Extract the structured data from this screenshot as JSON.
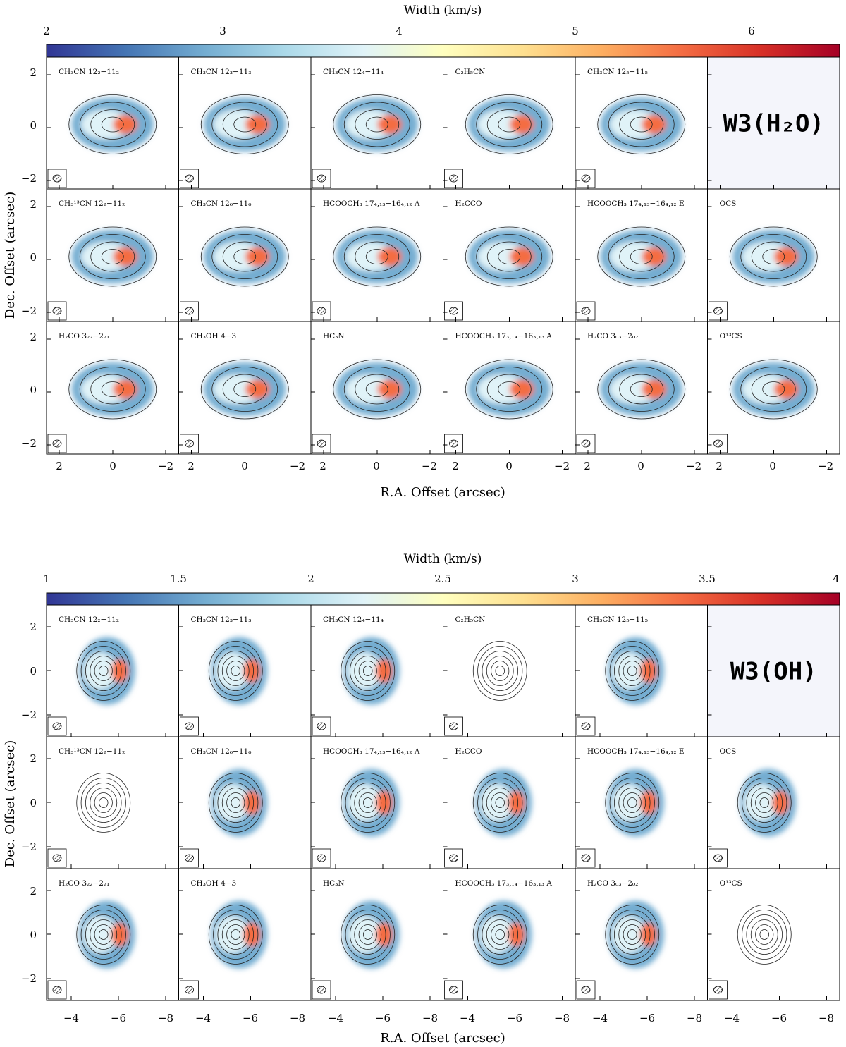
{
  "figure": {
    "sections": [
      {
        "id": "w3h2o",
        "source_label": "W3(H₂O)",
        "colorbar": {
          "title": "Width (km/s)",
          "min": 2,
          "max": 6.5,
          "ticks": [
            {
              "value": 2,
              "label": "2"
            },
            {
              "value": 3,
              "label": "3"
            },
            {
              "value": 4,
              "label": "4"
            },
            {
              "value": 5,
              "label": "5"
            },
            {
              "value": 6,
              "label": "6"
            }
          ]
        },
        "x_axis": {
          "label": "R.A. Offset (arcsec)",
          "ticks": [
            "2",
            "0",
            "−2"
          ],
          "tick_values": [
            2,
            0,
            -2
          ],
          "range": [
            2.6,
            -2.4
          ]
        },
        "y_axis": {
          "label": "Dec. Offset (arcsec)",
          "ticks": [
            "2",
            "0",
            "−2"
          ],
          "tick_values": [
            2,
            0,
            -2
          ],
          "range": [
            -2.4,
            2.6
          ]
        },
        "panels": [
          {
            "title": "CH₃CN 12₂−11₂",
            "map": "on"
          },
          {
            "title": "CH₃CN 12₃−11₃",
            "map": "on"
          },
          {
            "title": "CH₃CN 12₄−11₄",
            "map": "on"
          },
          {
            "title": "C₂H₅CN",
            "map": "on"
          },
          {
            "title": "CH₃CN 12₅−11₅",
            "map": "on"
          },
          {
            "title": "",
            "map": "label"
          },
          {
            "title": "CH₃¹³CN 12₂−11₂",
            "map": "on"
          },
          {
            "title": "CH₃CN 12₆−11₆",
            "map": "on"
          },
          {
            "title": "HCOOCH₃ 17₄,₁₃−16₄,₁₂ A",
            "map": "on"
          },
          {
            "title": "H₂CCO",
            "map": "on"
          },
          {
            "title": "HCOOCH₃ 17₄,₁₃−16₄,₁₂ E",
            "map": "on"
          },
          {
            "title": "OCS",
            "map": "on"
          },
          {
            "title": "H₂CO 3₂₂−2₂₁",
            "map": "on"
          },
          {
            "title": "CH₃OH 4−3",
            "map": "on"
          },
          {
            "title": "HC₃N",
            "map": "on"
          },
          {
            "title": "HCOOCH₃ 17₃,₁₄−16₃,₁₃ A",
            "map": "on"
          },
          {
            "title": "H₂CO 3₀₃−2₀₂",
            "map": "on"
          },
          {
            "title": "O¹³CS",
            "map": "on"
          }
        ]
      },
      {
        "id": "w3oh",
        "source_label": "W3(OH)",
        "colorbar": {
          "title": "Width (km/s)",
          "min": 1,
          "max": 4,
          "ticks": [
            {
              "value": 1,
              "label": "1"
            },
            {
              "value": 1.5,
              "label": "1.5"
            },
            {
              "value": 2,
              "label": "2"
            },
            {
              "value": 2.5,
              "label": "2.5"
            },
            {
              "value": 3,
              "label": "3"
            },
            {
              "value": 3.5,
              "label": "3.5"
            },
            {
              "value": 4,
              "label": "4"
            }
          ]
        },
        "x_axis": {
          "label": "R.A. Offset (arcsec)",
          "ticks": [
            "−4",
            "−6",
            "−8"
          ],
          "tick_values": [
            -4,
            -6,
            -8
          ],
          "range": [
            -3,
            -8.4
          ]
        },
        "y_axis": {
          "label": "Dec. Offset (arcsec)",
          "ticks": [
            "2",
            "0",
            "−2"
          ],
          "tick_values": [
            2,
            0,
            -2
          ],
          "range": [
            -2.9,
            3.1
          ]
        },
        "panels": [
          {
            "title": "CH₃CN 12₂−11₂",
            "map": "on"
          },
          {
            "title": "CH₃CN 12₃−11₃",
            "map": "on"
          },
          {
            "title": "CH₃CN 12₄−11₄",
            "map": "on"
          },
          {
            "title": "C₂H₅CN",
            "map": "off"
          },
          {
            "title": "CH₃CN 12₅−11₅",
            "map": "on"
          },
          {
            "title": "",
            "map": "label"
          },
          {
            "title": "CH₃¹³CN 12₂−11₂",
            "map": "off"
          },
          {
            "title": "CH₃CN 12₆−11₆",
            "map": "on"
          },
          {
            "title": "HCOOCH₃ 17₄,₁₃−16₄,₁₂ A",
            "map": "on"
          },
          {
            "title": "H₂CCO",
            "map": "on"
          },
          {
            "title": "HCOOCH₃ 17₄,₁₃−16₄,₁₂ E",
            "map": "on"
          },
          {
            "title": "OCS",
            "map": "on"
          },
          {
            "title": "H₂CO 3₂₂−2₂₁",
            "map": "on"
          },
          {
            "title": "CH₃OH 4−3",
            "map": "on"
          },
          {
            "title": "HC₃N",
            "map": "on"
          },
          {
            "title": "HCOOCH₃ 17₃,₁₄−16₃,₁₃ A",
            "map": "on"
          },
          {
            "title": "H₂CO 3₀₃−2₀₂",
            "map": "on"
          },
          {
            "title": "O¹³CS",
            "map": "off"
          }
        ]
      }
    ]
  },
  "colors": {
    "cmap": [
      "#313695",
      "#4575b4",
      "#74add1",
      "#abd9e9",
      "#e0f3f8",
      "#ffffbf",
      "#fee090",
      "#fdae61",
      "#f46d43",
      "#d73027",
      "#a50026"
    ],
    "label_cell": "#f4f5fb"
  }
}
